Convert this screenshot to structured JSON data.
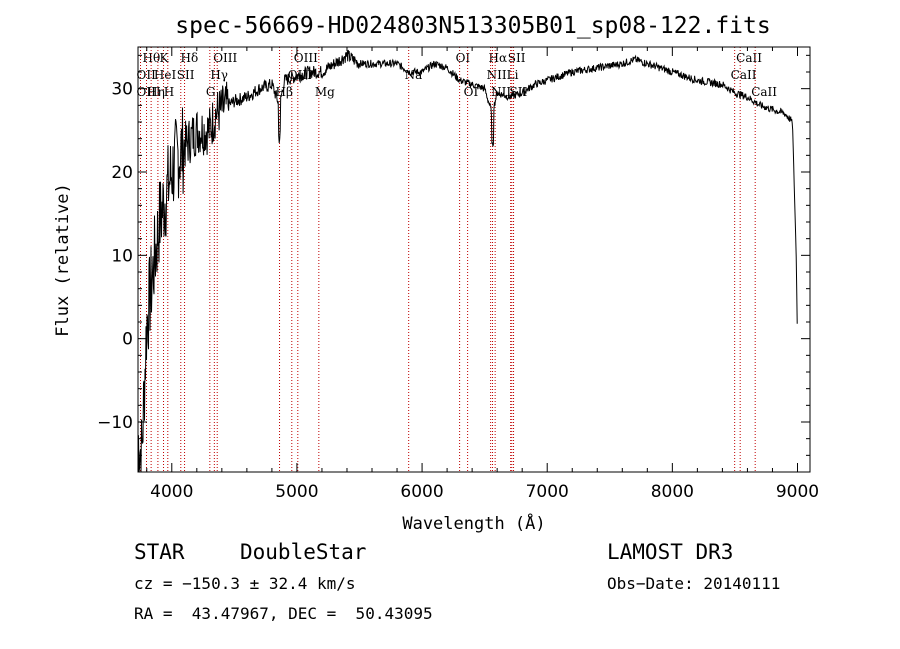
{
  "chart_data": {
    "type": "line",
    "title": "spec-56669-HD024803N513305B01_sp08-122.fits",
    "xlabel": "Wavelength (Å)",
    "ylabel": "Flux (relative)",
    "xlim": [
      3730,
      9100
    ],
    "ylim": [
      -16,
      35
    ],
    "xticks": [
      4000,
      5000,
      6000,
      7000,
      8000,
      9000
    ],
    "yticks": [
      -10,
      0,
      10,
      20,
      30
    ],
    "anchors": [
      [
        3730,
        -12
      ],
      [
        3760,
        -14
      ],
      [
        3800,
        2
      ],
      [
        3850,
        8
      ],
      [
        3900,
        14
      ],
      [
        3950,
        17
      ],
      [
        4000,
        20
      ],
      [
        4050,
        22
      ],
      [
        4100,
        23
      ],
      [
        4150,
        24
      ],
      [
        4200,
        25
      ],
      [
        4300,
        25
      ],
      [
        4350,
        27
      ],
      [
        4400,
        27.5
      ],
      [
        4500,
        28.5
      ],
      [
        4600,
        29
      ],
      [
        4700,
        30
      ],
      [
        4800,
        30.5
      ],
      [
        4860,
        28
      ],
      [
        4900,
        31
      ],
      [
        5000,
        31.5
      ],
      [
        5100,
        32
      ],
      [
        5200,
        32
      ],
      [
        5300,
        33
      ],
      [
        5400,
        34
      ],
      [
        5500,
        33
      ],
      [
        5600,
        33
      ],
      [
        5700,
        33
      ],
      [
        5800,
        33
      ],
      [
        5900,
        32
      ],
      [
        6000,
        32
      ],
      [
        6100,
        33
      ],
      [
        6200,
        32.5
      ],
      [
        6300,
        31
      ],
      [
        6400,
        30.5
      ],
      [
        6500,
        30
      ],
      [
        6560,
        27
      ],
      [
        6600,
        29.5
      ],
      [
        6700,
        29
      ],
      [
        6800,
        29.5
      ],
      [
        6900,
        30.5
      ],
      [
        7000,
        31
      ],
      [
        7200,
        32
      ],
      [
        7400,
        32.5
      ],
      [
        7600,
        33
      ],
      [
        7700,
        33.5
      ],
      [
        7800,
        33
      ],
      [
        8000,
        32
      ],
      [
        8200,
        31
      ],
      [
        8400,
        30.5
      ],
      [
        8500,
        29.5
      ],
      [
        8600,
        29
      ],
      [
        8700,
        28
      ],
      [
        8800,
        27.5
      ],
      [
        8900,
        27
      ],
      [
        8960,
        26
      ],
      [
        8990,
        10
      ],
      [
        9000,
        0
      ]
    ],
    "noise_seed": 7,
    "lines": [
      {
        "label": "Hθ",
        "x": 3798,
        "row": 0
      },
      {
        "label": "OII",
        "x": 3727,
        "row": 1
      },
      {
        "label": "OIII",
        "x": 3727,
        "row": 2
      },
      {
        "label": "K",
        "x": 3934,
        "row": 0
      },
      {
        "label": "HeI",
        "x": 3889,
        "row": 1
      },
      {
        "label": "Hη",
        "x": 3835,
        "row": 2
      },
      {
        "label": "H",
        "x": 3968,
        "row": 2
      },
      {
        "label": "Hδ",
        "x": 4102,
        "row": 0
      },
      {
        "label": "SII",
        "x": 4072,
        "row": 1
      },
      {
        "label": "OIII",
        "x": 4363,
        "row": 0
      },
      {
        "label": "Hγ",
        "x": 4340,
        "row": 1
      },
      {
        "label": "G",
        "x": 4304,
        "row": 2
      },
      {
        "label": "OIII",
        "x": 5007,
        "row": 0
      },
      {
        "label": "OIII",
        "x": 4959,
        "row": 1
      },
      {
        "label": "Hβ",
        "x": 4861,
        "row": 2
      },
      {
        "label": "Mg",
        "x": 5175,
        "row": 2
      },
      {
        "label": "Na",
        "x": 5893,
        "row": 1
      },
      {
        "label": "OI",
        "x": 6300,
        "row": 0
      },
      {
        "label": "OI",
        "x": 6364,
        "row": 2
      },
      {
        "label": "Hα",
        "x": 6563,
        "row": 0
      },
      {
        "label": "SII",
        "x": 6717,
        "row": 0
      },
      {
        "label": "NII",
        "x": 6548,
        "row": 1
      },
      {
        "label": "Li",
        "x": 6708,
        "row": 1
      },
      {
        "label": "NII",
        "x": 6584,
        "row": 2
      },
      {
        "label": "SII",
        "x": 6731,
        "row": 2
      },
      {
        "label": "CaII",
        "x": 8542,
        "row": 0
      },
      {
        "label": "CaII",
        "x": 8498,
        "row": 1
      },
      {
        "label": "CaII",
        "x": 8662,
        "row": 2
      }
    ]
  },
  "info": {
    "class": "STAR",
    "subclass": "DoubleStar",
    "survey": "LAMOST DR3",
    "cz": "cz = −150.3 ± 32.4 km/s",
    "obs_date": "Obs−Date: 20140111",
    "coords": "RA =  43.47967, DEC =  50.43095"
  }
}
